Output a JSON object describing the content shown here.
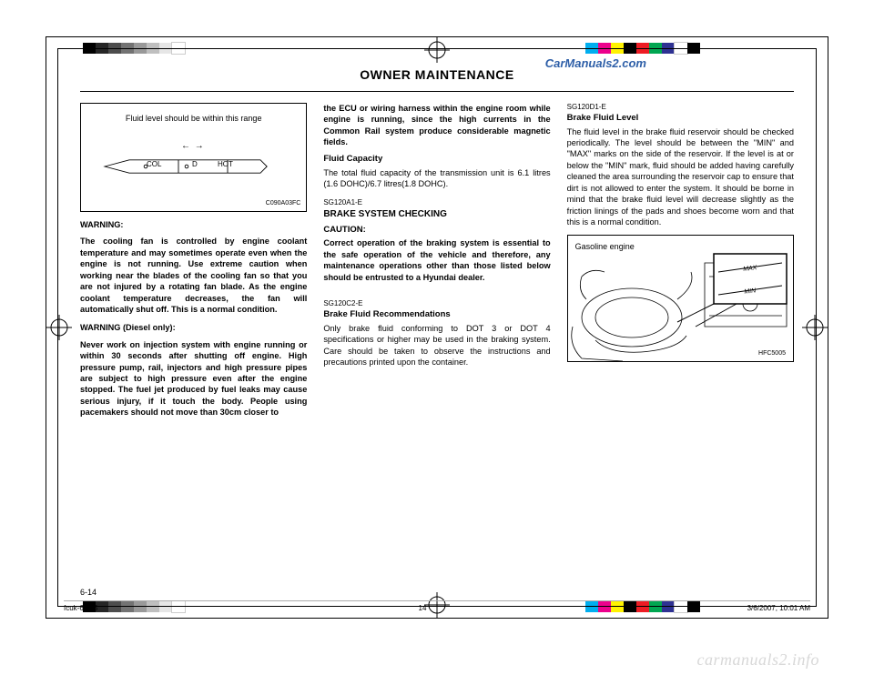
{
  "registration_colorbars": {
    "grays": [
      "#000000",
      "#262626",
      "#4d4d4d",
      "#737373",
      "#999999",
      "#bfbfbf",
      "#e6e6e6",
      "#ffffff"
    ],
    "colors": [
      "#00aeef",
      "#ec008c",
      "#fff200",
      "#000000",
      "#ed1c24",
      "#00a651",
      "#2e3192",
      "#ffffff",
      "#000000"
    ]
  },
  "url_text": "CarManuals2.com",
  "header": "OWNER MAINTENANCE",
  "col1": {
    "diagram_caption": "Fluid level should be within this range",
    "diagram_cold": "COL",
    "diagram_d": "D",
    "diagram_hot": "HOT",
    "diagram_arrows": "←   →",
    "diagram_code": "C090A03FC",
    "warn1_title": "WARNING:",
    "warn1_body": "The cooling fan is controlled by engine coolant temperature and may sometimes operate even when the engine is not running. Use extreme caution when working near the blades of the cooling fan so that you are not injured by a rotating fan blade. As the engine coolant temperature decreases, the fan will automatically shut off. This is a normal condition.",
    "warn2_title": "WARNING (Diesel only):",
    "warn2_body": "Never work on injection system with engine running or within 30 seconds after shutting off engine. High pressure pump, rail, injectors and high pressure pipes are subject to high pressure even after the engine stopped. The fuel jet produced by fuel leaks may cause serious injury, if it touch the body. People using pacemakers should not move than 30cm closer to"
  },
  "col2": {
    "top_body": "the ECU or wiring harness within the engine room while engine is running, since the high currents in the Common Rail system produce considerable magnetic fields.",
    "fluid_cap_title": "Fluid Capacity",
    "fluid_cap_body": "The total fluid capacity of the transmission unit is 6.1 litres (1.6 DOHC)/6.7 litres(1.8 DOHC).",
    "sec_a_code": "SG120A1-E",
    "sec_a_title": "BRAKE SYSTEM CHECKING",
    "sec_a_caution": "CAUTION:",
    "sec_a_body": "Correct operation of the braking system is essential to the safe operation of the vehicle and therefore, any maintenance operations other than those listed below should be entrusted to a Hyundai dealer.",
    "sec_c_code": "SG120C2-E",
    "sec_c_title": "Brake Fluid Recommendations",
    "sec_c_body": "Only brake fluid conforming to DOT 3 or DOT 4 specifications or higher may be used in the braking system. Care should be taken to observe the instructions and precautions printed upon the container."
  },
  "col3": {
    "sec_d_code": "SG120D1-E",
    "sec_d_title": "Brake Fluid Level",
    "sec_d_body": "The fluid level in the brake fluid reservoir should be checked periodically. The level should be between the \"MIN\" and \"MAX\" marks on the side of the reservoir. If the level is at or below the \"MIN\" mark, fluid should be added having carefully cleaned the area surrounding the reservoir cap to ensure that dirt is not allowed to enter the system. It should be borne in mind that the brake fluid level will decrease slightly as the friction linings of the pads and shoes become worn and that this is a normal condition.",
    "engine_label": "Gasoline engine",
    "engine_max": "MAX",
    "engine_min": "MIN",
    "engine_code": "HFC5005"
  },
  "page_num": "6-14",
  "footer": {
    "file": "fcuk-6.p65",
    "page": "14",
    "date": "3/6/2007, 10:01 AM"
  },
  "watermark": "carmanuals2.info"
}
